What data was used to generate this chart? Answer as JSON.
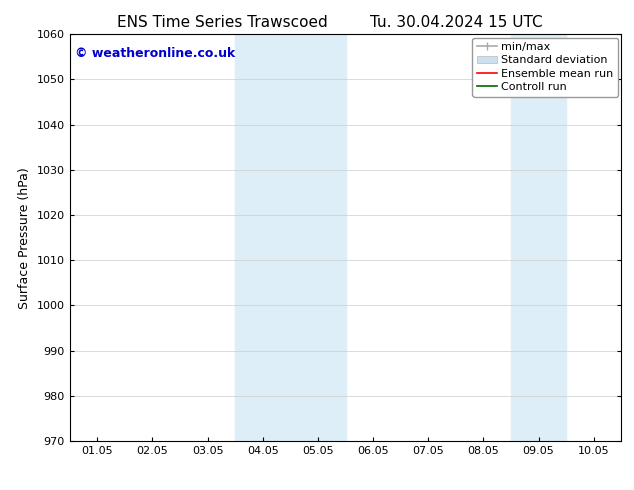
{
  "title_left": "ENS Time Series Trawscoed",
  "title_right": "Tu. 30.04.2024 15 UTC",
  "ylabel": "Surface Pressure (hPa)",
  "xlabel": "",
  "ylim": [
    970,
    1060
  ],
  "yticks": [
    970,
    980,
    990,
    1000,
    1010,
    1020,
    1030,
    1040,
    1050,
    1060
  ],
  "xtick_labels": [
    "01.05",
    "02.05",
    "03.05",
    "04.05",
    "05.05",
    "06.05",
    "07.05",
    "08.05",
    "09.05",
    "10.05"
  ],
  "num_ticks": 10,
  "xlim": [
    0,
    9
  ],
  "shaded_bands": [
    {
      "x_start": 3.0,
      "x_end": 5.0
    },
    {
      "x_start": 8.0,
      "x_end": 9.0
    }
  ],
  "shaded_color": "#ddeef8",
  "background_color": "#ffffff",
  "watermark_text": "© weatheronline.co.uk",
  "watermark_color": "#0000cc",
  "legend_items": [
    {
      "label": "min/max",
      "color": "#aaaaaa",
      "linestyle": "-",
      "linewidth": 1.2
    },
    {
      "label": "Standard deviation",
      "color": "#cce0f0",
      "linestyle": "-",
      "linewidth": 8
    },
    {
      "label": "Ensemble mean run",
      "color": "#ff0000",
      "linestyle": "-",
      "linewidth": 1.2
    },
    {
      "label": "Controll run",
      "color": "#006600",
      "linestyle": "-",
      "linewidth": 1.2
    }
  ],
  "grid_color": "#cccccc",
  "title_fontsize": 11,
  "ylabel_fontsize": 9,
  "tick_fontsize": 8,
  "legend_fontsize": 8,
  "watermark_fontsize": 9
}
